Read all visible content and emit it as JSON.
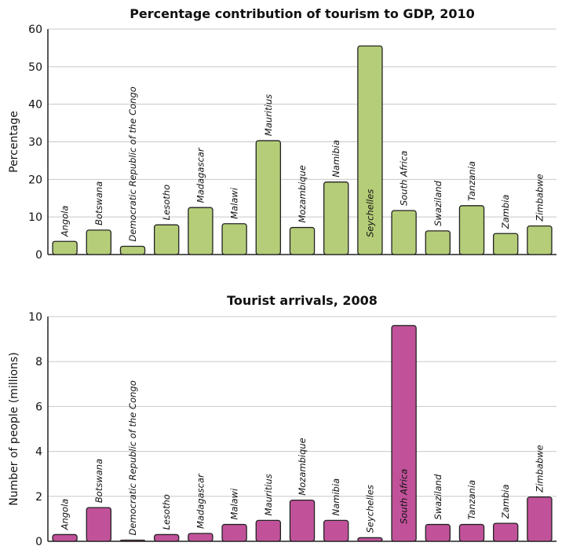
{
  "chart_data": [
    {
      "type": "bar",
      "title": "Percentage contribution of tourism to GDP, 2010",
      "xlabel": "",
      "ylabel": "Percentage",
      "ylim": [
        0,
        60
      ],
      "yticks": [
        0,
        10,
        20,
        30,
        40,
        50,
        60
      ],
      "grid": true,
      "color": "#b5cd78",
      "categories": [
        "Angola",
        "Botswana",
        "Democratic Republic of the Congo",
        "Lesotho",
        "Madagascar",
        "Malawi",
        "Mauritius",
        "Mozambique",
        "Namibia",
        "Seychelles",
        "South Africa",
        "Swaziland",
        "Tanzania",
        "Zambia",
        "Zimbabwe"
      ],
      "values": [
        3.5,
        6.5,
        2.2,
        7.9,
        12.5,
        8.2,
        30.3,
        7.2,
        19.3,
        55.5,
        11.7,
        6.3,
        13.0,
        5.6,
        7.6
      ],
      "label_inside": [
        "Seychelles"
      ]
    },
    {
      "type": "bar",
      "title": "Tourist arrivals, 2008",
      "xlabel": "",
      "ylabel": "Number of people (millions)",
      "ylim": [
        0,
        10
      ],
      "yticks": [
        0,
        2,
        4,
        6,
        8,
        10
      ],
      "grid": true,
      "color": "#c1529a",
      "categories": [
        "Angola",
        "Botswana",
        "Democratic Republic of the Congo",
        "Lesotho",
        "Madagascar",
        "Malawi",
        "Mauritius",
        "Mozambique",
        "Namibia",
        "Seychelles",
        "South Africa",
        "Swaziland",
        "Tanzania",
        "Zambia",
        "Zimbabwe"
      ],
      "values": [
        0.3,
        1.5,
        0.05,
        0.3,
        0.35,
        0.75,
        0.93,
        1.83,
        0.93,
        0.16,
        9.6,
        0.75,
        0.75,
        0.8,
        1.97
      ],
      "label_inside": [
        "South Africa"
      ]
    }
  ]
}
